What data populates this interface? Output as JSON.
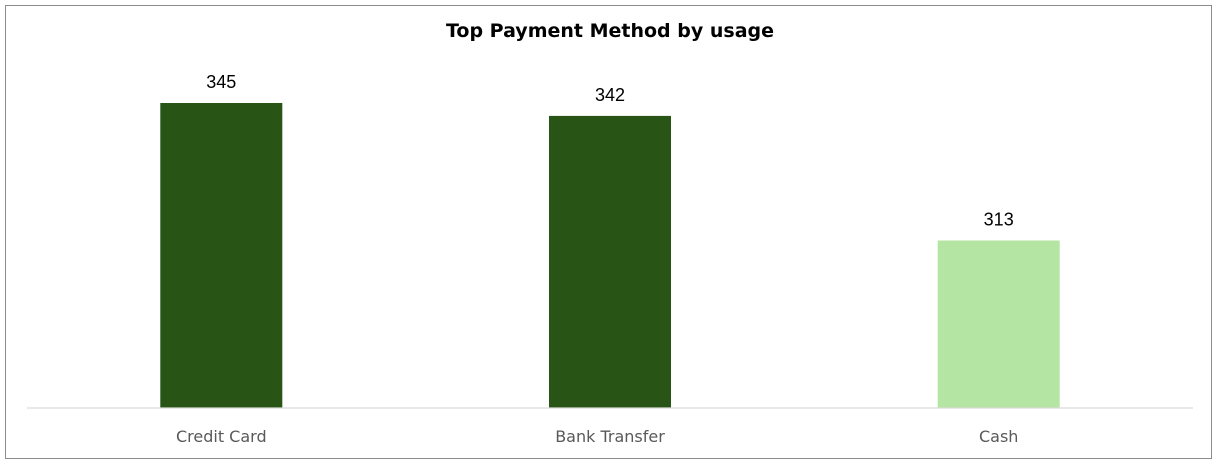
{
  "chart_data": {
    "type": "bar",
    "title": "Top Payment Method by usage",
    "xlabel": "",
    "ylabel": "",
    "categories": [
      "Credit Card",
      "Bank Transfer",
      "Cash"
    ],
    "values": [
      345,
      342,
      313
    ],
    "bar_colors": [
      "#285416",
      "#285416",
      "#b5e5a2"
    ],
    "axis_color": "#d9d9d9",
    "grid": false,
    "legend": "none",
    "data_labels": true,
    "y_axis_visible": false
  }
}
